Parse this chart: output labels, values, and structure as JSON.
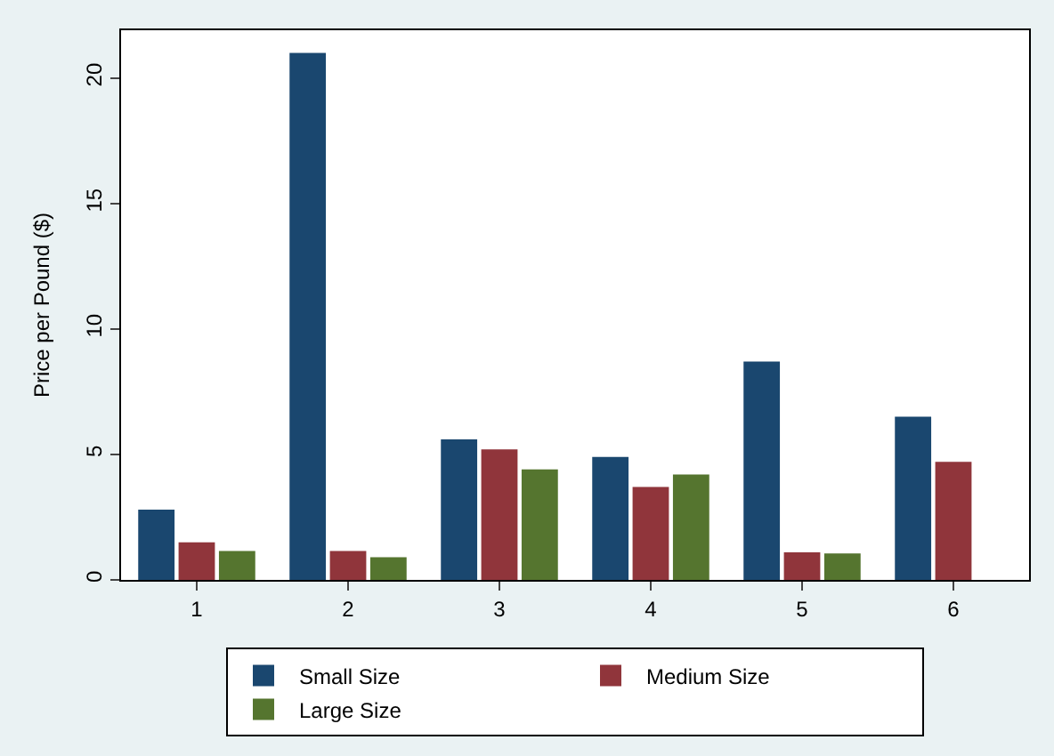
{
  "chart_data": {
    "type": "bar",
    "ylabel": "Price per Pound ($)",
    "categories": [
      "1",
      "2",
      "3",
      "4",
      "5",
      "6"
    ],
    "series": [
      {
        "name": "Small Size",
        "color": "#1a476f",
        "values": [
          2.8,
          21,
          5.6,
          4.9,
          8.7,
          6.5
        ]
      },
      {
        "name": "Medium Size",
        "color": "#90353b",
        "values": [
          1.5,
          1.15,
          5.2,
          3.7,
          1.1,
          4.7
        ]
      },
      {
        "name": "Large Size",
        "color": "#55752f",
        "values": [
          1.15,
          0.9,
          4.4,
          4.2,
          1.05,
          null
        ]
      }
    ],
    "ylim": [
      0,
      21.9
    ],
    "yticks": [
      0,
      5,
      10,
      15,
      20
    ],
    "grid": false,
    "legend": "bottom"
  }
}
